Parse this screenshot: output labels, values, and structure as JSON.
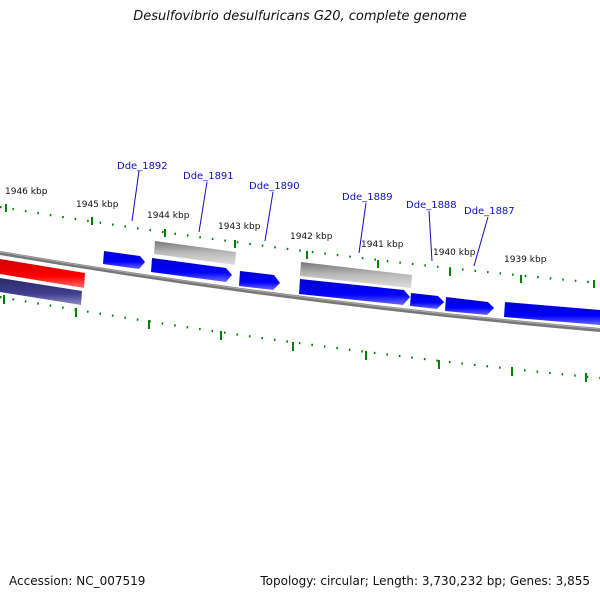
{
  "title": "Desulfovibrio desulfuricans G20, complete genome",
  "footer": {
    "accession": "Accession: NC_007519",
    "summary": "Topology: circular; Length: 3,730,232 bp; Genes: 3,855"
  },
  "ticks": [
    "1946 kbp",
    "1945 kbp",
    "1944 kbp",
    "1943 kbp",
    "1942 kbp",
    "1941 kbp",
    "1940 kbp",
    "1939 kbp"
  ],
  "genes": [
    "Dde_1892",
    "Dde_1891",
    "Dde_1890",
    "Dde_1889",
    "Dde_1888",
    "Dde_1887"
  ],
  "colors": {
    "cds": "#0000ee",
    "pseudo": "#aaaaaa",
    "rna": "#ee0000",
    "other": "#404090",
    "ticks": "#008000",
    "backbone": "#888888",
    "gene_label": "#1010c0"
  }
}
